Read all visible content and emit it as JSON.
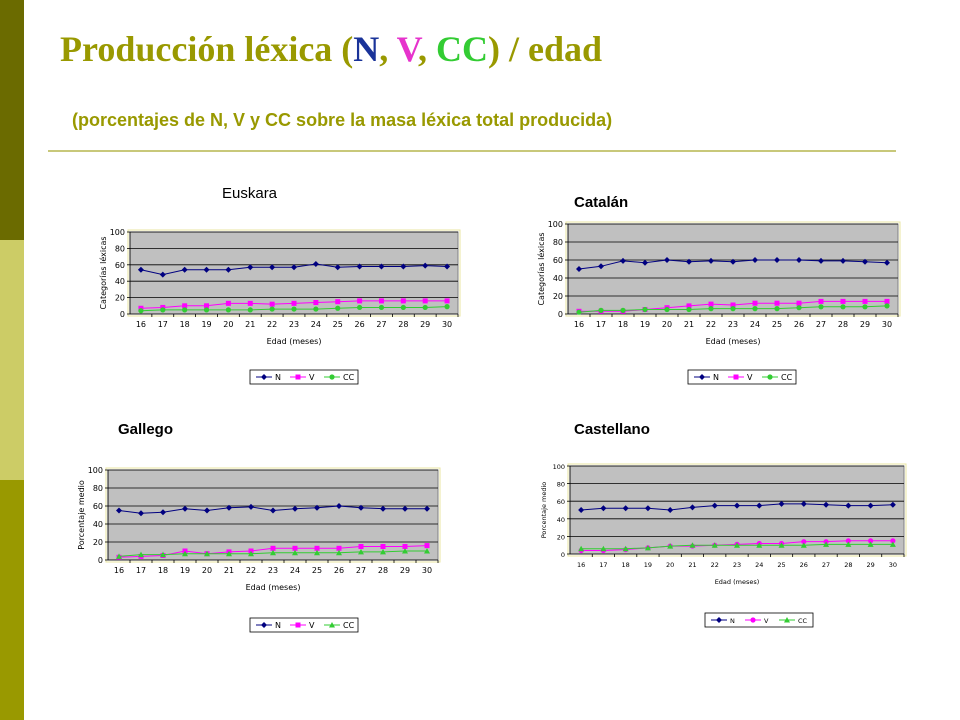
{
  "page": {
    "title_parts": [
      "Producción léxica (",
      "N",
      ", ",
      "V",
      ", ",
      "CC",
      ") / edad"
    ],
    "title_colors": [
      "#999900",
      "#1a3399",
      "#999900",
      "#e633cc",
      "#999900",
      "#33cc33",
      "#999900"
    ],
    "subtitle": "(porcentajes de N, V y CC sobre la masa léxica total producida)"
  },
  "series_colors": {
    "N": "#000080",
    "V": "#ff00ff",
    "CC": "#33cc33"
  },
  "chart_data": [
    {
      "type": "line",
      "title": "Euskara",
      "xlabel": "Edad (meses)",
      "ylabel": "Categorías léxicas",
      "ylim": [
        0,
        100
      ],
      "yticks": [
        0,
        20,
        40,
        60,
        80,
        100
      ],
      "x": [
        "16",
        "17",
        "18",
        "19",
        "20",
        "21",
        "22",
        "23",
        "24",
        "25",
        "26",
        "27",
        "28",
        "29",
        "30"
      ],
      "grid": true,
      "legend": "bottom",
      "series": [
        {
          "name": "N",
          "marker": "diamond",
          "values": [
            54,
            48,
            54,
            54,
            54,
            57,
            57,
            57,
            61,
            57,
            58,
            58,
            58,
            59,
            58
          ]
        },
        {
          "name": "V",
          "marker": "square",
          "values": [
            7,
            8,
            10,
            10,
            13,
            13,
            12,
            13,
            14,
            15,
            16,
            16,
            16,
            16,
            16
          ]
        },
        {
          "name": "CC",
          "marker": "circle",
          "values": [
            4,
            5,
            5,
            5,
            5,
            5,
            6,
            6,
            6,
            7,
            8,
            8,
            8,
            8,
            9
          ]
        }
      ]
    },
    {
      "type": "line",
      "title": "Catalán",
      "xlabel": "Edad (meses)",
      "ylabel": "Categorías léxicas",
      "ylim": [
        0,
        100
      ],
      "yticks": [
        0,
        20,
        40,
        60,
        80,
        100
      ],
      "x": [
        "16",
        "17",
        "18",
        "19",
        "20",
        "21",
        "22",
        "23",
        "24",
        "25",
        "26",
        "27",
        "28",
        "29",
        "30"
      ],
      "grid": true,
      "legend": "bottom",
      "series": [
        {
          "name": "N",
          "marker": "diamond",
          "values": [
            50,
            53,
            59,
            57,
            60,
            58,
            59,
            58,
            60,
            60,
            60,
            59,
            59,
            58,
            57
          ]
        },
        {
          "name": "V",
          "marker": "square",
          "values": [
            3,
            3,
            3,
            5,
            7,
            9,
            11,
            10,
            12,
            12,
            12,
            14,
            14,
            14,
            14
          ]
        },
        {
          "name": "CC",
          "marker": "circle",
          "values": [
            2,
            4,
            4,
            5,
            5,
            5,
            6,
            6,
            6,
            6,
            7,
            8,
            8,
            8,
            9
          ]
        }
      ]
    },
    {
      "type": "line",
      "title": "Gallego",
      "xlabel": "Edad (meses)",
      "ylabel": "Porcentaje medio",
      "ylim": [
        0,
        100
      ],
      "yticks": [
        0,
        20,
        40,
        60,
        80,
        100
      ],
      "x": [
        "16",
        "17",
        "18",
        "19",
        "20",
        "21",
        "22",
        "23",
        "24",
        "25",
        "26",
        "27",
        "28",
        "29",
        "30"
      ],
      "grid": true,
      "legend": "bottom",
      "series": [
        {
          "name": "N",
          "marker": "diamond",
          "values": [
            55,
            52,
            53,
            57,
            55,
            58,
            59,
            55,
            57,
            58,
            60,
            58,
            57,
            57,
            57
          ]
        },
        {
          "name": "V",
          "marker": "square",
          "values": [
            3,
            4,
            5,
            10,
            7,
            9,
            10,
            13,
            13,
            13,
            13,
            15,
            15,
            15,
            16
          ]
        },
        {
          "name": "CC",
          "marker": "triangle",
          "values": [
            4,
            6,
            6,
            7,
            7,
            7,
            7,
            8,
            8,
            8,
            8,
            9,
            9,
            10,
            10
          ]
        }
      ]
    },
    {
      "type": "line",
      "title": "Castellano",
      "xlabel": "Edad (meses)",
      "ylabel": "Porcentaje medio",
      "ylim": [
        0,
        100
      ],
      "yticks": [
        0,
        20,
        40,
        60,
        80,
        100
      ],
      "x": [
        "16",
        "17",
        "18",
        "19",
        "20",
        "21",
        "22",
        "23",
        "24",
        "25",
        "26",
        "27",
        "28",
        "29",
        "30"
      ],
      "grid": true,
      "legend": "bottom",
      "series": [
        {
          "name": "N",
          "marker": "diamond",
          "values": [
            50,
            52,
            52,
            52,
            50,
            53,
            55,
            55,
            55,
            57,
            57,
            56,
            55,
            55,
            56
          ]
        },
        {
          "name": "V",
          "marker": "circle",
          "values": [
            4,
            4,
            5,
            7,
            9,
            9,
            10,
            11,
            12,
            12,
            14,
            14,
            15,
            15,
            15
          ]
        },
        {
          "name": "CC",
          "marker": "triangle",
          "values": [
            6,
            6,
            6,
            7,
            9,
            10,
            10,
            10,
            10,
            10,
            10,
            11,
            11,
            11,
            11
          ]
        }
      ]
    }
  ]
}
